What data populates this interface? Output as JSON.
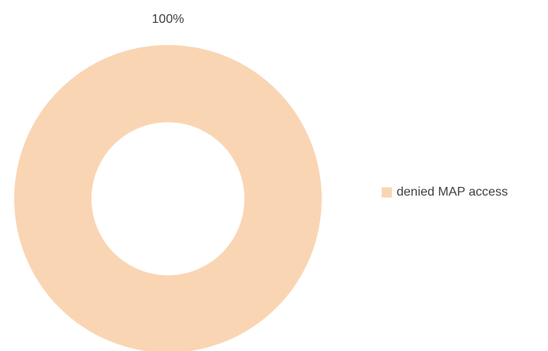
{
  "chart_data": {
    "type": "donut",
    "categories": [
      "denied MAP access"
    ],
    "values": [
      100
    ],
    "value_labels": [
      "100%"
    ],
    "colors": [
      "#fad5b4"
    ],
    "legend": "right"
  }
}
